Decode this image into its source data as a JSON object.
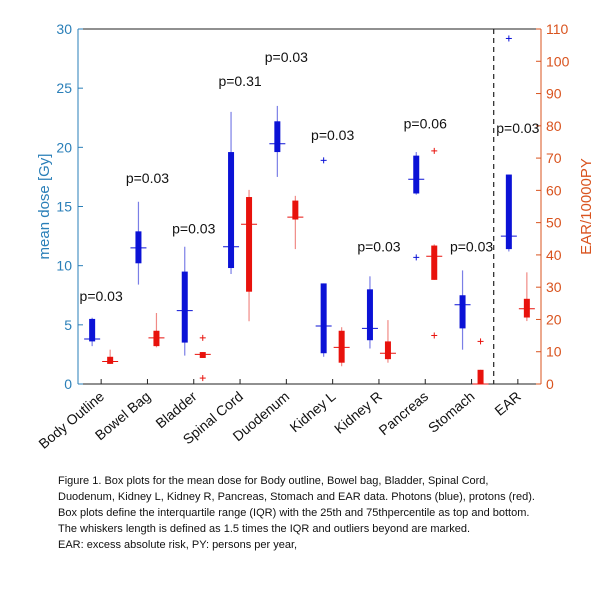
{
  "chart_data": {
    "type": "box",
    "categories": [
      "Body Outline",
      "Bowel Bag",
      "Bladder",
      "Spinal Cord",
      "Duodenum",
      "Kidney L",
      "Kidney R",
      "Pancreas",
      "Stomach",
      "EAR"
    ],
    "left_axis": {
      "label": "mean dose [Gy]",
      "ylim": [
        0,
        30
      ],
      "ticks": [
        "0",
        "5",
        "10",
        "15",
        "20",
        "25",
        "30"
      ]
    },
    "right_axis": {
      "label": "EAR/10000PY",
      "ylim": [
        0,
        110
      ],
      "ticks": [
        "0",
        "10",
        "20",
        "30",
        "40",
        "50",
        "60",
        "70",
        "80",
        "90",
        "100",
        "110"
      ]
    },
    "p_values": [
      {
        "category": "Body Outline",
        "text": "p=0.03",
        "y": 7.0
      },
      {
        "category": "Bowel Bag",
        "text": "p=0.03",
        "y": 17.0
      },
      {
        "category": "Bladder",
        "text": "p=0.03",
        "y": 12.7
      },
      {
        "category": "Spinal Cord",
        "text": "p=0.31",
        "y": 25.2
      },
      {
        "category": "Duodenum",
        "text": "p=0.03",
        "y": 27.2
      },
      {
        "category": "Kidney L",
        "text": "p=0.03",
        "y": 20.6
      },
      {
        "category": "Kidney R",
        "text": "p=0.03",
        "y": 11.2
      },
      {
        "category": "Pancreas",
        "text": "p=0.06",
        "y": 21.6
      },
      {
        "category": "Stomach",
        "text": "p=0.03",
        "y": 11.2
      },
      {
        "category": "EAR",
        "text": "p=0.03",
        "y": 21.2
      }
    ],
    "series": [
      {
        "name": "Photons",
        "color": "#0b12d6",
        "axis": "left",
        "boxes": [
          {
            "category": "Body Outline",
            "whisker_low": 3.2,
            "q1": 3.6,
            "median": 3.8,
            "q3": 5.5,
            "whisker_high": 5.6,
            "outliers": []
          },
          {
            "category": "Bowel Bag",
            "whisker_low": 8.4,
            "q1": 10.2,
            "median": 11.5,
            "q3": 12.9,
            "whisker_high": 15.4,
            "outliers": []
          },
          {
            "category": "Bladder",
            "whisker_low": 2.4,
            "q1": 3.5,
            "median": 6.2,
            "q3": 9.5,
            "whisker_high": 11.6,
            "outliers": []
          },
          {
            "category": "Spinal Cord",
            "whisker_low": 9.3,
            "q1": 9.8,
            "median": 11.6,
            "q3": 19.6,
            "whisker_high": 23.0,
            "outliers": []
          },
          {
            "category": "Duodenum",
            "whisker_low": 17.5,
            "q1": 19.6,
            "median": 20.3,
            "q3": 22.2,
            "whisker_high": 23.5,
            "outliers": []
          },
          {
            "category": "Kidney L",
            "whisker_low": 2.3,
            "q1": 2.6,
            "median": 4.9,
            "q3": 8.5,
            "whisker_high": 8.5,
            "outliers": [
              18.9
            ]
          },
          {
            "category": "Kidney R",
            "whisker_low": 3.0,
            "q1": 3.7,
            "median": 4.7,
            "q3": 8.0,
            "whisker_high": 9.1,
            "outliers": []
          },
          {
            "category": "Pancreas",
            "whisker_low": 16.0,
            "q1": 16.1,
            "median": 17.3,
            "q3": 19.3,
            "whisker_high": 19.6,
            "outliers": [
              10.7
            ]
          },
          {
            "category": "Stomach",
            "whisker_low": 2.9,
            "q1": 4.7,
            "median": 6.7,
            "q3": 7.5,
            "whisker_high": 9.6,
            "outliers": []
          },
          {
            "category": "EAR",
            "whisker_low": 11.2,
            "q1": 11.4,
            "median": 12.5,
            "q3": 17.7,
            "whisker_high": 17.7,
            "outliers": [
              29.2
            ]
          }
        ]
      },
      {
        "name": "Protons",
        "color": "#e8120c",
        "axis": "left",
        "boxes": [
          {
            "category": "Body Outline",
            "whisker_low": 1.7,
            "q1": 1.7,
            "median": 1.9,
            "q3": 2.3,
            "whisker_high": 2.9,
            "outliers": []
          },
          {
            "category": "Bowel Bag",
            "whisker_low": 3.1,
            "q1": 3.2,
            "median": 3.9,
            "q3": 4.5,
            "whisker_high": 6.0,
            "outliers": []
          },
          {
            "category": "Bladder",
            "whisker_low": 2.2,
            "q1": 2.2,
            "median": 2.5,
            "q3": 2.7,
            "whisker_high": 2.7,
            "outliers": [
              3.9,
              0.5
            ]
          },
          {
            "category": "Spinal Cord",
            "whisker_low": 5.3,
            "q1": 7.8,
            "median": 13.5,
            "q3": 15.8,
            "whisker_high": 16.4,
            "outliers": []
          },
          {
            "category": "Duodenum",
            "whisker_low": 11.4,
            "q1": 13.9,
            "median": 14.1,
            "q3": 15.5,
            "whisker_high": 15.9,
            "outliers": []
          },
          {
            "category": "Kidney L",
            "whisker_low": 1.5,
            "q1": 1.8,
            "median": 3.1,
            "q3": 4.5,
            "whisker_high": 4.8,
            "outliers": []
          },
          {
            "category": "Kidney R",
            "whisker_low": 1.8,
            "q1": 2.1,
            "median": 2.6,
            "q3": 3.6,
            "whisker_high": 5.4,
            "outliers": []
          },
          {
            "category": "Pancreas",
            "whisker_low": 8.8,
            "q1": 8.8,
            "median": 10.8,
            "q3": 11.7,
            "whisker_high": 11.8,
            "outliers": [
              19.7,
              4.1
            ]
          },
          {
            "category": "Stomach",
            "whisker_low": 0.0,
            "q1": 0.0,
            "median": 0.0,
            "q3": 1.2,
            "whisker_high": 1.2,
            "outliers": [
              3.6
            ]
          }
        ]
      },
      {
        "name": "Protons EAR",
        "color": "#e8120c",
        "axis": "right",
        "boxes": [
          {
            "category": "EAR",
            "whisker_low": 19.5,
            "q1": 20.6,
            "median": 23.3,
            "q3": 26.4,
            "whisker_high": 34.6,
            "outliers": []
          }
        ]
      }
    ],
    "separator_between": [
      "Stomach",
      "EAR"
    ],
    "grid": false
  },
  "caption": [
    "Figure 1. Box plots for the mean dose for Body outline, Bowel bag, Bladder, Spinal Cord,",
    "Duodenum, Kidney L, Kidney R, Pancreas,  Stomach and EAR data. Photons (blue), protons (red).",
    "Box plots define the interquartile range (IQR) with the 25th and 75thpercentile as top and bottom.",
    "The whiskers length is defined as 1.5  times the IQR and outliers beyond are marked.",
    "EAR: excess absolute risk, PY: persons per year,"
  ],
  "colors": {
    "left_axis": "#2a7fb8",
    "right_axis": "#d9531e",
    "photons": "#0b12d6",
    "protons": "#e8120c",
    "whisker_photons": "#7b7fe6",
    "whisker_protons": "#f08a86",
    "separator": "#222222"
  }
}
